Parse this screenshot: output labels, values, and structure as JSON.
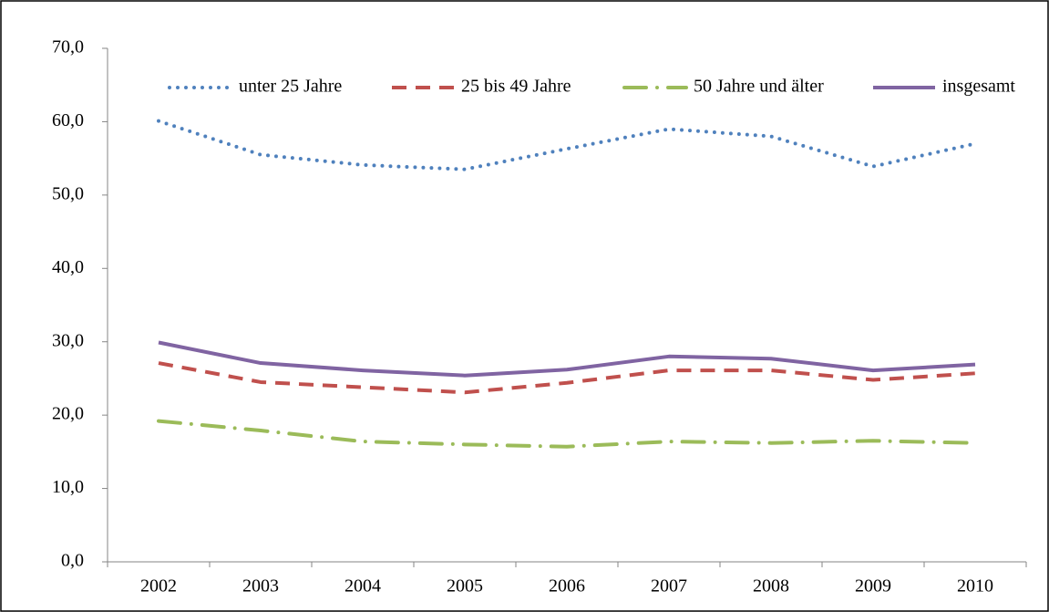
{
  "chart_data": {
    "type": "line",
    "categories": [
      "2002",
      "2003",
      "2004",
      "2005",
      "2006",
      "2007",
      "2008",
      "2009",
      "2010"
    ],
    "series": [
      {
        "name": "unter 25 Jahre",
        "color": "#4f81bd",
        "dash": "dotted",
        "values": [
          60.1,
          55.5,
          54.1,
          53.5,
          56.3,
          59.0,
          58.0,
          53.9,
          57.0
        ]
      },
      {
        "name": "25 bis 49 Jahre",
        "color": "#c0504d",
        "dash": "dashed",
        "values": [
          27.1,
          24.5,
          23.8,
          23.1,
          24.4,
          26.1,
          26.1,
          24.8,
          25.7
        ]
      },
      {
        "name": "50 Jahre und älter",
        "color": "#9bbb59",
        "dash": "dashdot",
        "values": [
          19.2,
          17.9,
          16.4,
          16.0,
          15.7,
          16.4,
          16.2,
          16.5,
          16.2
        ]
      },
      {
        "name": "insgesamt",
        "color": "#8064a2",
        "dash": "solid",
        "values": [
          29.9,
          27.1,
          26.1,
          25.4,
          26.2,
          28.0,
          27.7,
          26.1,
          26.9
        ]
      }
    ],
    "ylim": [
      0,
      70
    ],
    "yticks": [
      {
        "value": 0,
        "label": "0,0"
      },
      {
        "value": 10,
        "label": "10,0"
      },
      {
        "value": 20,
        "label": "20,0"
      },
      {
        "value": 30,
        "label": "30,0"
      },
      {
        "value": 40,
        "label": "40,0"
      },
      {
        "value": 50,
        "label": "50,0"
      },
      {
        "value": 60,
        "label": "60,0"
      },
      {
        "value": 70,
        "label": "70,0"
      }
    ],
    "grid": false,
    "legend": "top"
  }
}
